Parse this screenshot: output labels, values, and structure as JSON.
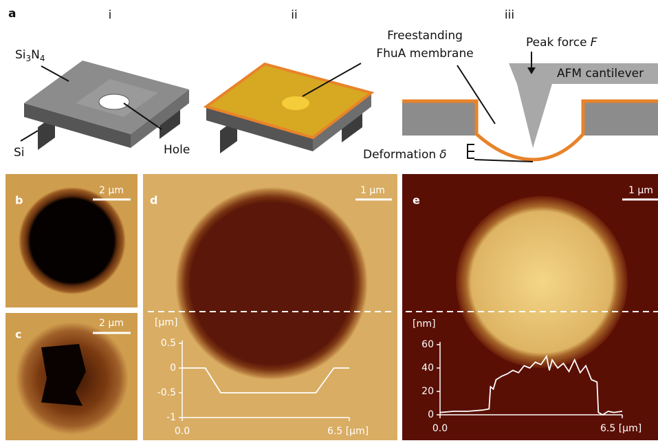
{
  "panel_a": {
    "label": "a",
    "steps": [
      "i",
      "ii",
      "iii"
    ],
    "si3n4": [
      "Si",
      "3",
      "N",
      "4"
    ],
    "si": "Si",
    "hole": "Hole",
    "membrane": [
      "Freestanding",
      "FhuA membrane"
    ],
    "peak_force": "Peak force",
    "force_symbol": "F",
    "cantilever": "AFM cantilever",
    "deformation": "Deformation",
    "delta": "δ"
  },
  "panels": {
    "b": {
      "label": "b",
      "scale_bar": "2 µm"
    },
    "c": {
      "label": "c",
      "scale_bar": "2 µm"
    },
    "d": {
      "label": "d",
      "scale_bar": "1 µm"
    },
    "e": {
      "label": "e",
      "scale_bar": "1 µm"
    }
  },
  "chart_data": [
    {
      "type": "line",
      "ylabel": "[µm]",
      "color": "#ffffff",
      "x": [
        0,
        0.9,
        1.5,
        5.2,
        5.9,
        6.5
      ],
      "values": [
        0,
        0,
        -0.5,
        -0.5,
        0,
        0
      ],
      "xlim": [
        0,
        6.5
      ],
      "ylim": [
        -1,
        0.5
      ],
      "xticks": [
        {
          "value": 0,
          "label": "0.0"
        },
        {
          "value": 6.5,
          "label": "6.5 [µm]"
        }
      ],
      "yticks": [
        0.5,
        0,
        -0.5,
        -1
      ]
    },
    {
      "type": "line",
      "ylabel": "[nm]",
      "color": "#ffffff",
      "x": [
        0,
        0.5,
        1.0,
        1.5,
        1.75,
        1.8,
        1.9,
        2.0,
        2.2,
        2.4,
        2.6,
        2.8,
        3.0,
        3.2,
        3.4,
        3.6,
        3.8,
        3.9,
        4.0,
        4.2,
        4.4,
        4.6,
        4.8,
        5.0,
        5.2,
        5.4,
        5.6,
        5.65,
        5.8,
        6.0,
        6.2,
        6.5
      ],
      "values": [
        2,
        3,
        3,
        4,
        5,
        24,
        22,
        30,
        33,
        35,
        38,
        36,
        42,
        40,
        45,
        43,
        50,
        38,
        47,
        40,
        44,
        37,
        47,
        36,
        42,
        30,
        28,
        2,
        0,
        3,
        2,
        3
      ],
      "xlim": [
        0,
        6.5
      ],
      "ylim": [
        0,
        60
      ],
      "xticks": [
        {
          "value": 0,
          "label": "0.0"
        },
        {
          "value": 6.5,
          "label": "6.5 [µm]"
        }
      ],
      "yticks": [
        0,
        20,
        40,
        60
      ]
    }
  ]
}
